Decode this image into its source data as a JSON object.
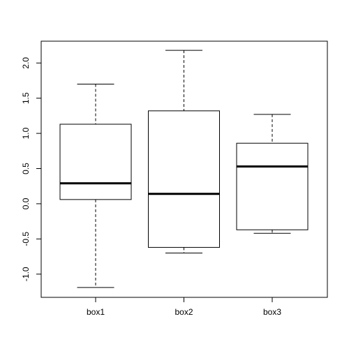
{
  "chart_data": {
    "type": "boxplot",
    "categories": [
      "box1",
      "box2",
      "box3"
    ],
    "whisker_low": [
      -1.19,
      -0.7,
      -0.42
    ],
    "q1": [
      0.06,
      -0.62,
      -0.37
    ],
    "median": [
      0.29,
      0.14,
      0.53
    ],
    "q3": [
      1.13,
      1.32,
      0.86
    ],
    "whisker_high": [
      1.7,
      2.18,
      1.27
    ],
    "color": "#000000",
    "ylim": [
      -1.33,
      2.31
    ],
    "yticks": [
      {
        "value": -1,
        "label": "-1.0"
      },
      -0.5,
      {
        "value": 0,
        "label": "0.0"
      },
      0.5,
      {
        "value": 1,
        "label": "1.0"
      },
      1.5,
      {
        "value": 2,
        "label": "2.0"
      }
    ]
  }
}
